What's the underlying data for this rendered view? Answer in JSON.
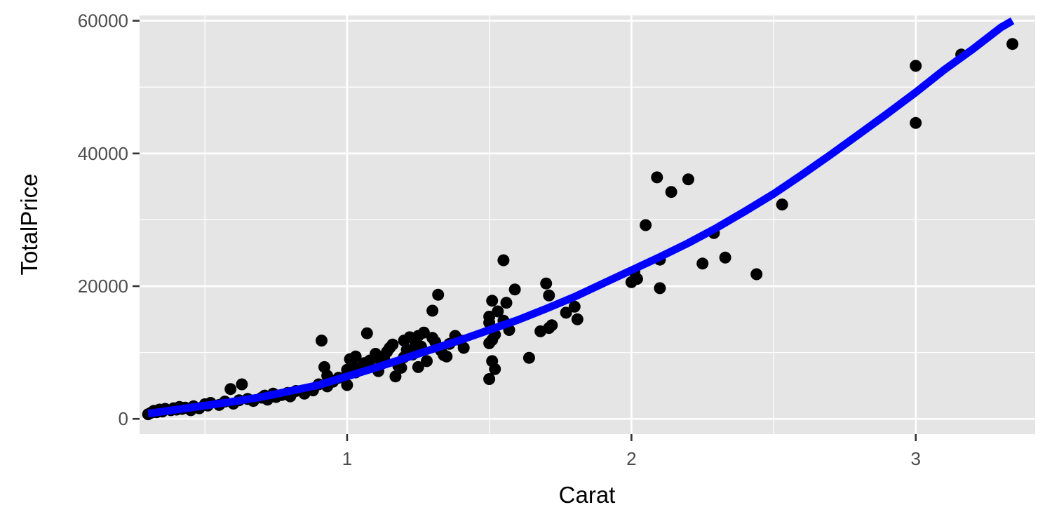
{
  "chart_data": {
    "type": "scatter",
    "title": "",
    "xlabel": "Carat",
    "ylabel": "TotalPrice",
    "xlim": [
      0.27,
      3.42
    ],
    "ylim": [
      -2300,
      60800
    ],
    "x_ticks": [
      1,
      2,
      3
    ],
    "x_tick_labels": [
      "1",
      "2",
      "3"
    ],
    "y_ticks": [
      0,
      20000,
      40000,
      60000
    ],
    "y_tick_labels": [
      "0",
      "20000",
      "40000",
      "60000"
    ],
    "grid": true,
    "legend": "none",
    "colors": {
      "panel": "#e5e5e5",
      "grid": "#ffffff",
      "points": "#000000",
      "fit_line": "#0000ff",
      "tick_label": "#4d4d4d",
      "axis_title": "#000000"
    },
    "series": [
      {
        "type": "scatter",
        "x": [
          0.3,
          0.31,
          0.32,
          0.33,
          0.34,
          0.35,
          0.36,
          0.38,
          0.39,
          0.4,
          0.41,
          0.42,
          0.43,
          0.45,
          0.46,
          0.48,
          0.5,
          0.51,
          0.52,
          0.55,
          0.57,
          0.59,
          0.6,
          0.62,
          0.63,
          0.65,
          0.67,
          0.7,
          0.71,
          0.72,
          0.74,
          0.75,
          0.77,
          0.79,
          0.8,
          0.82,
          0.85,
          0.88,
          0.9,
          0.91,
          0.92,
          0.93,
          0.93,
          0.95,
          0.97,
          1.0,
          1.0,
          1.01,
          1.02,
          1.03,
          1.03,
          1.05,
          1.06,
          1.07,
          1.08,
          1.1,
          1.11,
          1.12,
          1.13,
          1.14,
          1.15,
          1.16,
          1.17,
          1.18,
          1.19,
          1.2,
          1.2,
          1.21,
          1.22,
          1.23,
          1.24,
          1.25,
          1.25,
          1.26,
          1.27,
          1.28,
          1.3,
          1.3,
          1.31,
          1.32,
          1.33,
          1.34,
          1.35,
          1.36,
          1.38,
          1.4,
          1.41,
          1.5,
          1.5,
          1.5,
          1.5,
          1.51,
          1.51,
          1.51,
          1.52,
          1.52,
          1.53,
          1.55,
          1.55,
          1.56,
          1.57,
          1.59,
          1.64,
          1.68,
          1.7,
          1.71,
          1.71,
          1.72,
          1.77,
          1.8,
          1.81,
          2.0,
          2.01,
          2.02,
          2.05,
          2.09,
          2.1,
          2.1,
          2.14,
          2.2,
          2.25,
          2.29,
          2.33,
          2.44,
          2.53,
          3.0,
          3.0,
          3.16,
          3.34
        ],
        "y": [
          700,
          900,
          1200,
          1000,
          1400,
          1100,
          1500,
          1300,
          1600,
          1400,
          1800,
          1500,
          1700,
          1300,
          1900,
          1600,
          2200,
          2000,
          2400,
          2100,
          2600,
          4500,
          2300,
          2800,
          5200,
          3000,
          2700,
          3200,
          3500,
          2900,
          3800,
          3300,
          3600,
          3900,
          3400,
          4200,
          3800,
          4300,
          5200,
          11800,
          7800,
          4900,
          6500,
          5600,
          6200,
          5100,
          7400,
          9000,
          8100,
          9400,
          7000,
          7600,
          8400,
          12900,
          8800,
          9800,
          7200,
          8500,
          9100,
          10100,
          10700,
          11200,
          6400,
          8000,
          7700,
          9300,
          11800,
          10400,
          12300,
          9700,
          11000,
          12500,
          7800,
          10900,
          13000,
          8700,
          12200,
          16300,
          11600,
          18700,
          10300,
          9600,
          9400,
          11300,
          12500,
          11800,
          10700,
          11400,
          14500,
          15400,
          6000,
          8700,
          11900,
          17800,
          7500,
          12700,
          16200,
          23900,
          14800,
          17500,
          13400,
          19500,
          9200,
          13200,
          20400,
          18600,
          13700,
          14100,
          16000,
          16900,
          15000,
          20600,
          22200,
          21100,
          29200,
          36400,
          19700,
          24000,
          34200,
          36100,
          23400,
          28000,
          24300,
          21800,
          32300,
          53200,
          44600,
          54900,
          56500
        ]
      },
      {
        "type": "line",
        "name": "",
        "x": [
          0.3,
          0.4,
          0.5,
          0.6,
          0.7,
          0.8,
          0.9,
          1.0,
          1.1,
          1.2,
          1.3,
          1.4,
          1.5,
          1.6,
          1.7,
          1.8,
          1.9,
          2.0,
          2.1,
          2.2,
          2.3,
          2.4,
          2.5,
          2.6,
          2.7,
          2.8,
          2.9,
          3.0,
          3.1,
          3.2,
          3.3,
          3.34
        ],
        "y": [
          800,
          1400,
          2000,
          2600,
          3300,
          4200,
          5100,
          6400,
          7700,
          9100,
          10500,
          11900,
          13400,
          14900,
          16600,
          18400,
          20400,
          22400,
          24400,
          26500,
          28800,
          31300,
          33900,
          36800,
          39800,
          42900,
          46000,
          49200,
          52600,
          55700,
          59000,
          60000
        ]
      }
    ]
  }
}
